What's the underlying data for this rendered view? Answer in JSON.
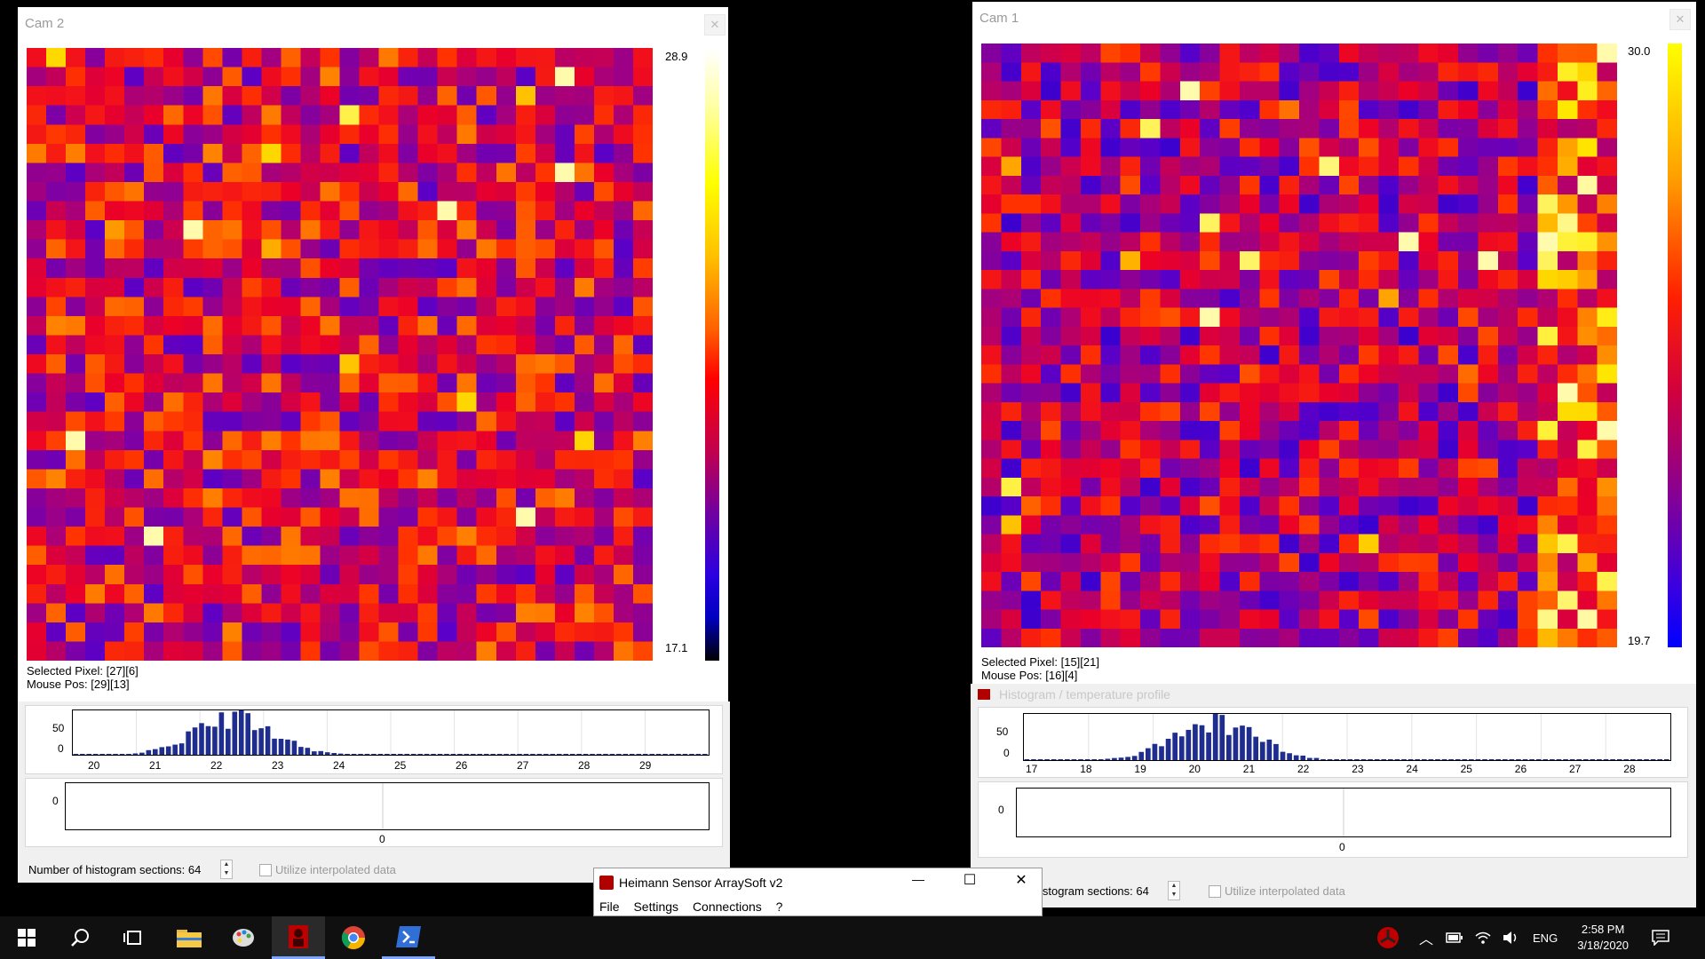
{
  "cam2": {
    "title": "Cam 2",
    "close_label": "✕",
    "cmax": "28.9",
    "cmin": "17.1",
    "selected_pixel": "Selected Pixel: [27][6]",
    "mouse_pos": "Mouse Pos: [29][13]",
    "hist_y_labels": [
      "50",
      "0"
    ],
    "hist_x_labels": [
      "20",
      "21",
      "22",
      "23",
      "24",
      "25",
      "26",
      "27",
      "28",
      "29"
    ],
    "profile_y_label": "0",
    "profile_x_label": "0",
    "sections_label": "Number of histogram sections: 64",
    "interp_label": "Utilize interpolated data"
  },
  "cam1": {
    "title": "Cam 1",
    "close_label": "✕",
    "cmax": "30.0",
    "cmin": "19.7",
    "selected_pixel": "Selected Pixel: [15][21]",
    "mouse_pos": "Mouse Pos: [16][4]",
    "hidden_title": "Histogram / temperature profile",
    "hist_y_labels": [
      "50",
      "0"
    ],
    "hist_x_labels": [
      "17",
      "18",
      "19",
      "20",
      "21",
      "22",
      "23",
      "24",
      "25",
      "26",
      "27",
      "28"
    ],
    "profile_y_label": "0",
    "profile_x_label": "0",
    "sections_label": "istogram sections: 64",
    "interp_label": "Utilize interpolated data"
  },
  "main_app": {
    "title": "Heimann Sensor ArraySoft v2",
    "menu": [
      "File",
      "Settings",
      "Connections",
      "?"
    ],
    "min_label": "—",
    "max_label": "☐",
    "close_label": "✕"
  },
  "taskbar": {
    "lang": "ENG",
    "time": "2:58 PM",
    "date": "3/18/2020"
  },
  "colors": {
    "hist_bar": "#1f2d8f",
    "taskbar_bg": "#101010",
    "accent": "#7aa7ff"
  }
}
